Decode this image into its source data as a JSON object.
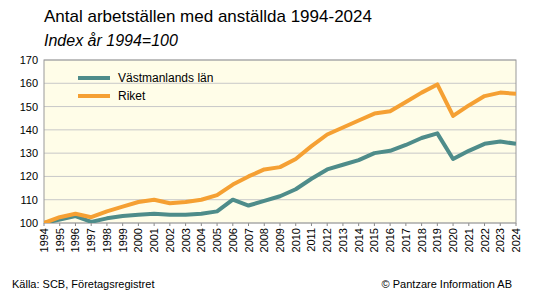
{
  "chart_data": {
    "type": "line",
    "title": "Antal arbetställen med anställda 1994-2024",
    "subtitle": "Index år 1994=100",
    "source": "Källa: SCB, Företagsregistret",
    "credit": "© Pantzare Information AB",
    "x": [
      1994,
      1995,
      1996,
      1997,
      1998,
      1999,
      2000,
      2001,
      2002,
      2003,
      2004,
      2005,
      2006,
      2007,
      2008,
      2009,
      2010,
      2011,
      2012,
      2013,
      2014,
      2015,
      2016,
      2017,
      2018,
      2019,
      2020,
      2021,
      2022,
      2023,
      2024
    ],
    "xlim": [
      1994,
      2024
    ],
    "xticks": [
      1994,
      1995,
      1996,
      1997,
      1998,
      1999,
      2000,
      2001,
      2002,
      2003,
      2004,
      2005,
      2006,
      2007,
      2008,
      2009,
      2010,
      2011,
      2012,
      2013,
      2014,
      2015,
      2016,
      2017,
      2018,
      2019,
      2020,
      2021,
      2022,
      2023,
      2024
    ],
    "ylim": [
      100,
      170
    ],
    "yticks": [
      100,
      110,
      120,
      130,
      140,
      150,
      160,
      170
    ],
    "grid": true,
    "legend": "top-left",
    "series": [
      {
        "name": "Västmanlands län",
        "color": "#4e8c8a",
        "values": [
          100,
          101.5,
          103,
          100.5,
          102,
          103,
          103.5,
          104,
          103.5,
          103.5,
          104,
          105,
          110,
          107.5,
          109.5,
          111.5,
          114.5,
          119,
          123,
          125,
          127,
          130,
          131,
          133.5,
          136.5,
          138.5,
          127.5,
          131,
          134,
          135,
          134
        ]
      },
      {
        "name": "Riket",
        "color": "#f5a033",
        "values": [
          100,
          102.5,
          104,
          102.5,
          105,
          107,
          109,
          110,
          108.5,
          109,
          110,
          112,
          116.5,
          120,
          123,
          124,
          127.5,
          133,
          138,
          141,
          144,
          147,
          148,
          152,
          156,
          159.5,
          146,
          150.5,
          154.5,
          156,
          155.5
        ]
      }
    ]
  }
}
